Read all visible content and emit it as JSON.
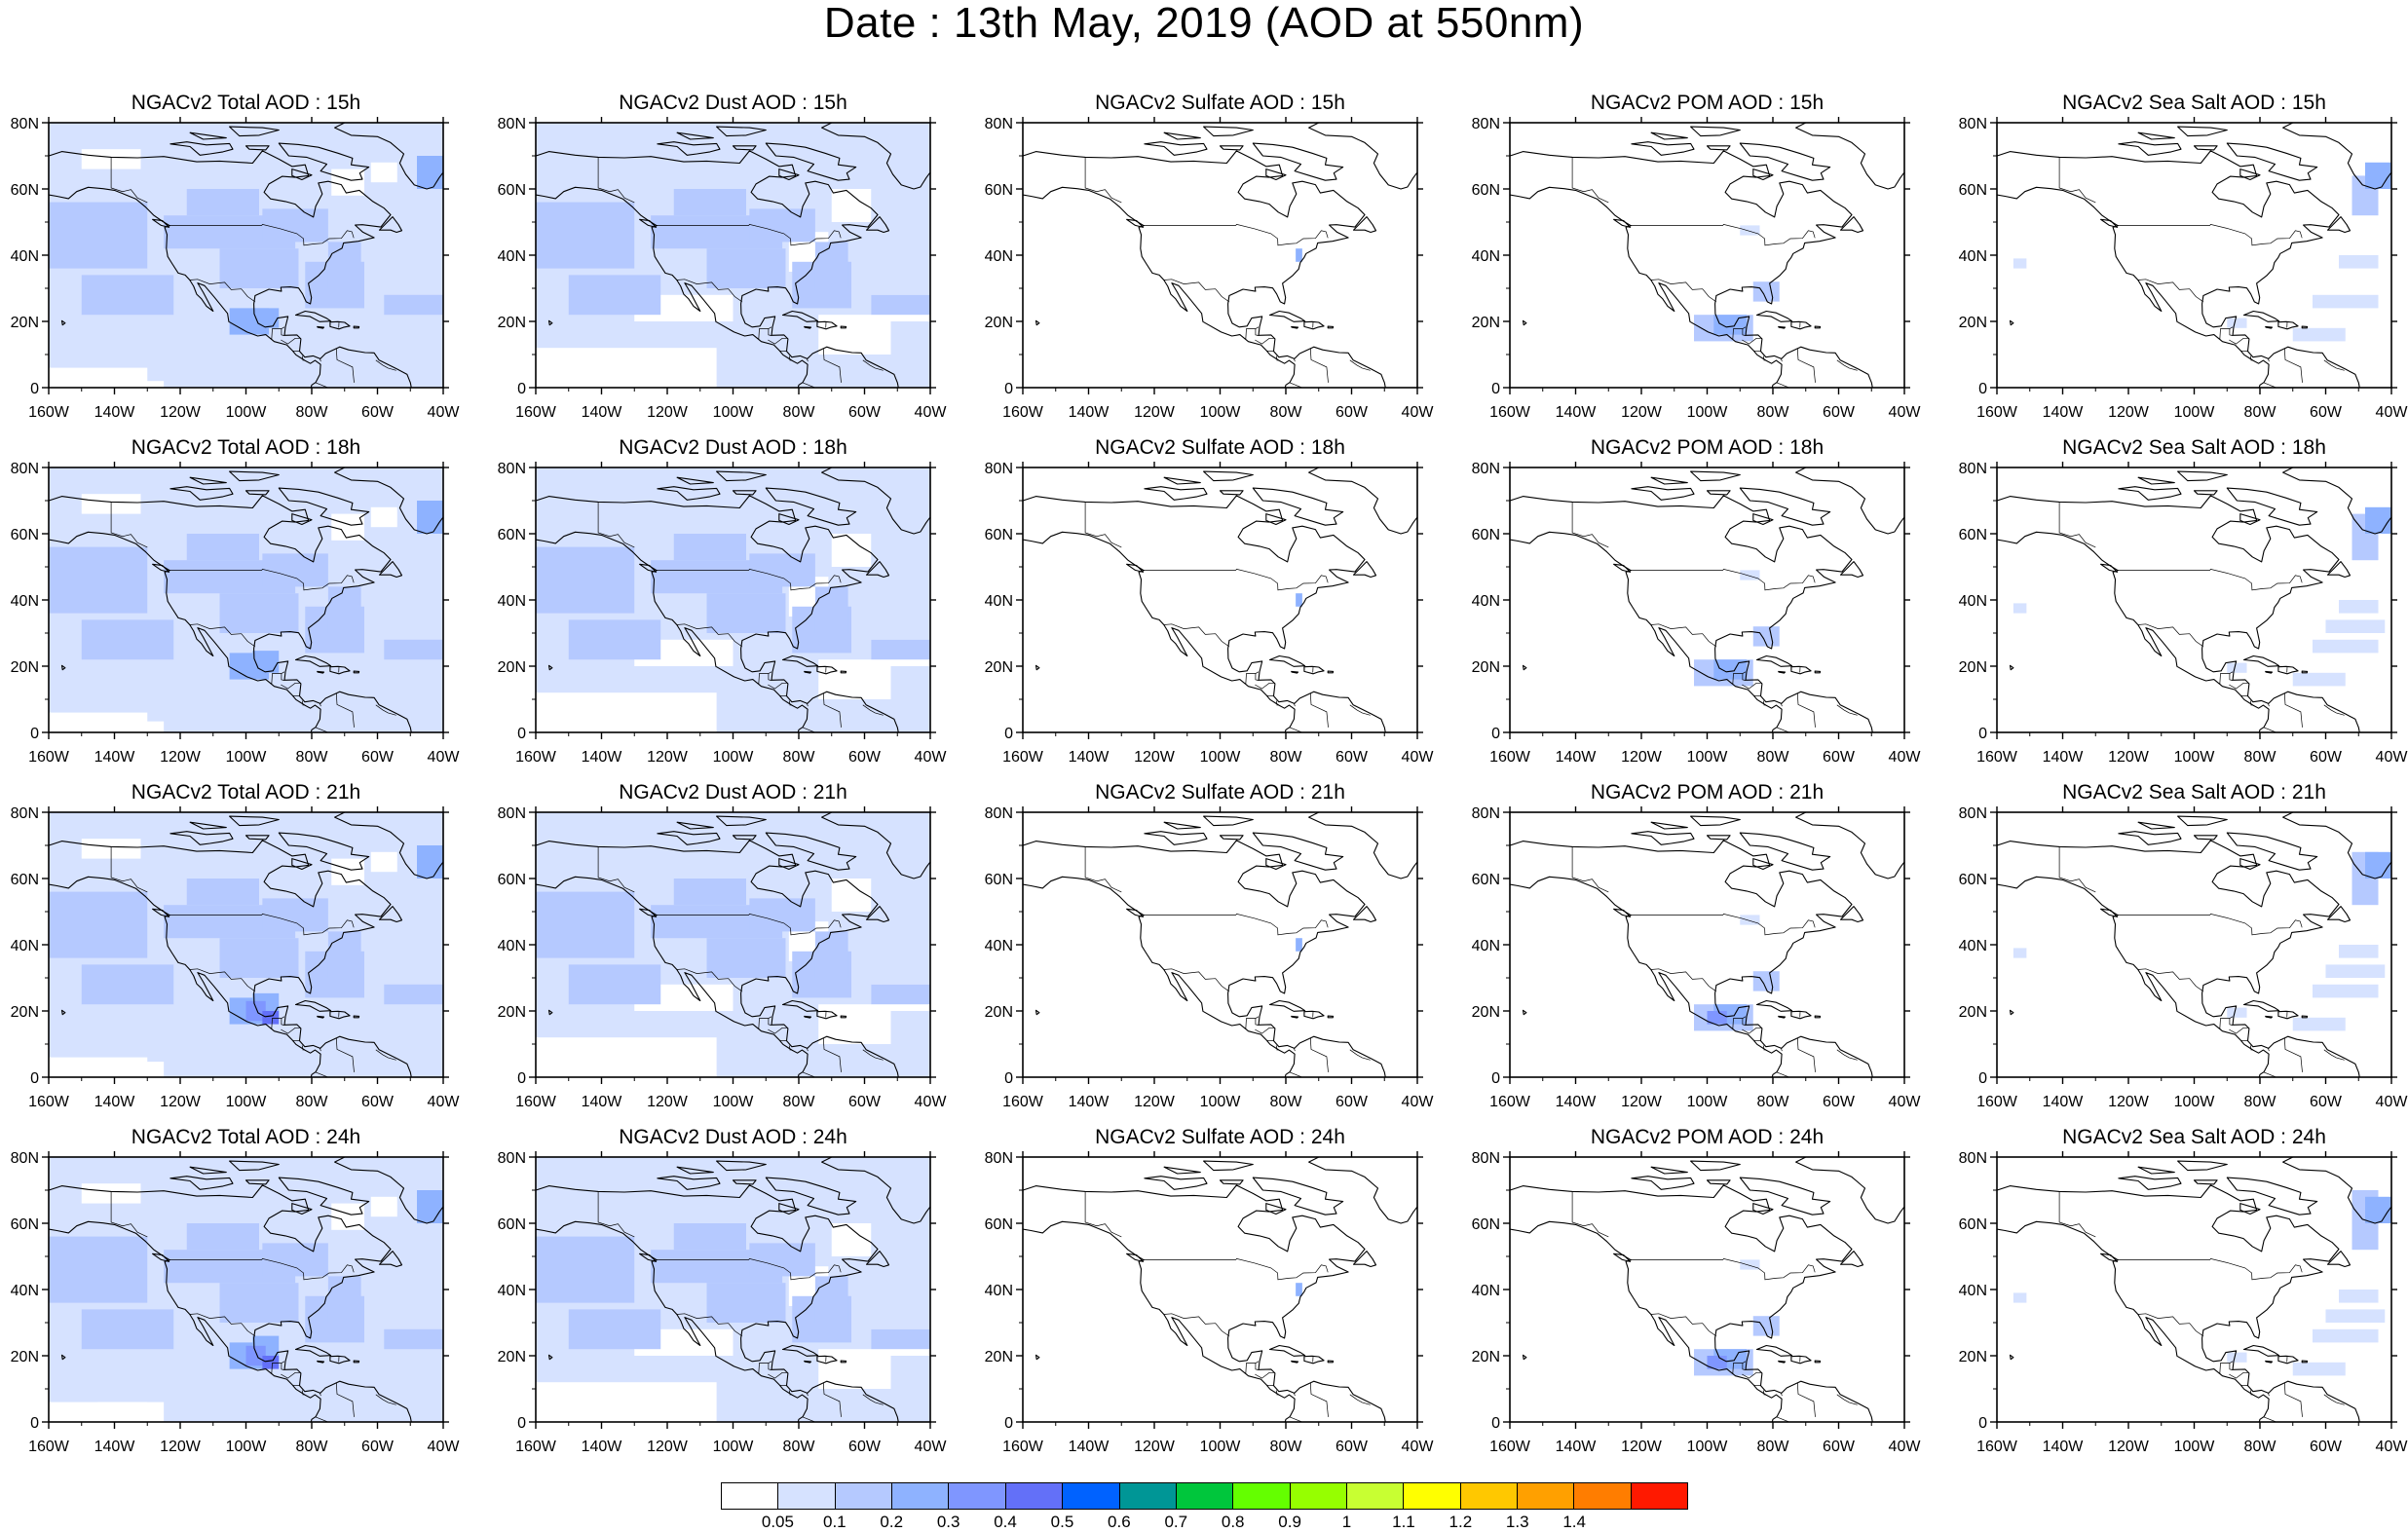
{
  "title": "Date : 13th May, 2019 (AOD at 550nm)",
  "lon_ticks": [
    "160W",
    "140W",
    "120W",
    "100W",
    "80W",
    "60W",
    "40W"
  ],
  "lat_ticks": [
    "0",
    "20N",
    "40N",
    "60N",
    "80N"
  ],
  "panels": [
    {
      "title": "NGACv2 Total AOD : 15h",
      "species": "total",
      "hour": 15
    },
    {
      "title": "NGACv2 Dust AOD : 15h",
      "species": "dust",
      "hour": 15
    },
    {
      "title": "NGACv2 Sulfate AOD : 15h",
      "species": "sulfate",
      "hour": 15
    },
    {
      "title": "NGACv2 POM AOD : 15h",
      "species": "pom",
      "hour": 15
    },
    {
      "title": "NGACv2 Sea Salt AOD : 15h",
      "species": "seasalt",
      "hour": 15
    },
    {
      "title": "NGACv2 Total AOD : 18h",
      "species": "total",
      "hour": 18
    },
    {
      "title": "NGACv2 Dust AOD : 18h",
      "species": "dust",
      "hour": 18
    },
    {
      "title": "NGACv2 Sulfate AOD : 18h",
      "species": "sulfate",
      "hour": 18
    },
    {
      "title": "NGACv2 POM AOD : 18h",
      "species": "pom",
      "hour": 18
    },
    {
      "title": "NGACv2 Sea Salt AOD : 18h",
      "species": "seasalt",
      "hour": 18
    },
    {
      "title": "NGACv2 Total AOD : 21h",
      "species": "total",
      "hour": 21
    },
    {
      "title": "NGACv2 Dust AOD : 21h",
      "species": "dust",
      "hour": 21
    },
    {
      "title": "NGACv2 Sulfate AOD : 21h",
      "species": "sulfate",
      "hour": 21
    },
    {
      "title": "NGACv2 POM AOD : 21h",
      "species": "pom",
      "hour": 21
    },
    {
      "title": "NGACv2 Sea Salt AOD : 21h",
      "species": "seasalt",
      "hour": 21
    },
    {
      "title": "NGACv2 Total AOD : 24h",
      "species": "total",
      "hour": 24
    },
    {
      "title": "NGACv2 Dust AOD : 24h",
      "species": "dust",
      "hour": 24
    },
    {
      "title": "NGACv2 Sulfate AOD : 24h",
      "species": "sulfate",
      "hour": 24
    },
    {
      "title": "NGACv2 POM AOD : 24h",
      "species": "pom",
      "hour": 24
    },
    {
      "title": "NGACv2 Sea Salt  AOD : 24h",
      "species": "seasalt",
      "hour": 24
    }
  ],
  "colorbar": {
    "colors": [
      "#ffffff",
      "#d6e2ff",
      "#b5c9ff",
      "#8eb2ff",
      "#7f96ff",
      "#6370f8",
      "#0062ff",
      "#009696",
      "#00c63c",
      "#64ff00",
      "#96ff00",
      "#c8ff32",
      "#ffff00",
      "#ffc800",
      "#ffa000",
      "#ff7d00",
      "#ff1900"
    ],
    "labels": [
      "0.05",
      "0.1",
      "0.2",
      "0.3",
      "0.4",
      "0.5",
      "0.6",
      "0.7",
      "0.8",
      "0.9",
      "1",
      "1.1",
      "1.2",
      "1.3",
      "1.4"
    ]
  },
  "colors": {
    "land_outline": "#000000",
    "background": "#ffffff"
  }
}
